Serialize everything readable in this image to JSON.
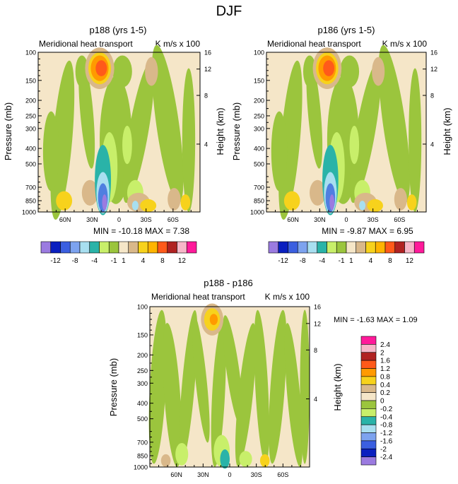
{
  "page_title": "DJF",
  "colors": {
    "diff_band": "#f5e6c8",
    "full_band": "#f5e6c8",
    "green": "#9bc53d",
    "light_green": "#c8ef6a",
    "tan": "#d9b88a",
    "gold": "#f7d21c",
    "orange": "#ff9a00",
    "red_orange": "#ff5a1a",
    "teal": "#2ab3a8",
    "light_blue": "#a8dff0",
    "blue": "#4f7fe0",
    "violet": "#9b7be0"
  },
  "chart_data": [
    {
      "type": "contour",
      "title": "p188 (yrs 1-5)",
      "subtitle_left": "Meridional heat transport",
      "subtitle_right": "K m/s x 100",
      "ylabel": "Pressure (mb)",
      "ylabel_right": "Height (km)",
      "pressure_ticks": [
        "100",
        "150",
        "200",
        "250",
        "300",
        "400",
        "500",
        "700",
        "850",
        "1000"
      ],
      "height_ticks": [
        "16",
        "12",
        "8",
        "4"
      ],
      "x_ticks": [
        "60N",
        "30N",
        "0",
        "30S",
        "60S"
      ],
      "stats": "MIN = -10.18  MAX =  7.38"
    },
    {
      "type": "contour",
      "title": "p186 (yrs 1-5)",
      "subtitle_left": "Meridional heat transport",
      "subtitle_right": "K m/s x 100",
      "ylabel": "Pressure (mb)",
      "ylabel_right": "Height (km)",
      "pressure_ticks": [
        "100",
        "150",
        "200",
        "250",
        "300",
        "400",
        "500",
        "700",
        "850",
        "1000"
      ],
      "height_ticks": [
        "16",
        "12",
        "8",
        "4"
      ],
      "x_ticks": [
        "60N",
        "30N",
        "0",
        "30S",
        "60S"
      ],
      "stats": "MIN = -9.87  MAX =  6.95"
    },
    {
      "type": "contour",
      "title": "p188 - p186",
      "subtitle_left": "Meridional heat transport",
      "subtitle_right": "K m/s x 100",
      "ylabel": "Pressure (mb)",
      "ylabel_right": "Height (km)",
      "pressure_ticks": [
        "100",
        "150",
        "200",
        "250",
        "300",
        "400",
        "500",
        "700",
        "850",
        "1000"
      ],
      "height_ticks": [
        "16",
        "12",
        "8",
        "4"
      ],
      "x_ticks": [
        "60N",
        "30N",
        "0",
        "30S",
        "60S"
      ],
      "stats": "MIN = -1.63  MAX =  1.09"
    }
  ],
  "colorbar_horizontal": {
    "labels": [
      "-12",
      "-8",
      "-4",
      "-1",
      "1",
      "4",
      "8",
      "12"
    ],
    "colors": [
      "#9b7be0",
      "#0a1fbf",
      "#3b5fe0",
      "#7da3ef",
      "#a8dff0",
      "#2ab3a8",
      "#c8ef6a",
      "#9bc53d",
      "#f5e6c8",
      "#d9b88a",
      "#f7d21c",
      "#ffb400",
      "#ff5a1a",
      "#b02222",
      "#f7b6c8",
      "#ff1a9a"
    ]
  },
  "colorbar_vertical": {
    "labels": [
      "2.4",
      "2",
      "1.6",
      "1.2",
      "0.8",
      "0.4",
      "0.2",
      "0",
      "-0.2",
      "-0.4",
      "-0.8",
      "-1.2",
      "-1.6",
      "-2",
      "-2.4"
    ],
    "colors": [
      "#ff1a9a",
      "#f7b6c8",
      "#b02222",
      "#ff5a1a",
      "#ff9a00",
      "#f7d21c",
      "#d9b88a",
      "#f5e6c8",
      "#9bc53d",
      "#c8ef6a",
      "#2ab3a8",
      "#a8dff0",
      "#7da3ef",
      "#3b5fe0",
      "#0a1fbf",
      "#9b7be0"
    ]
  }
}
